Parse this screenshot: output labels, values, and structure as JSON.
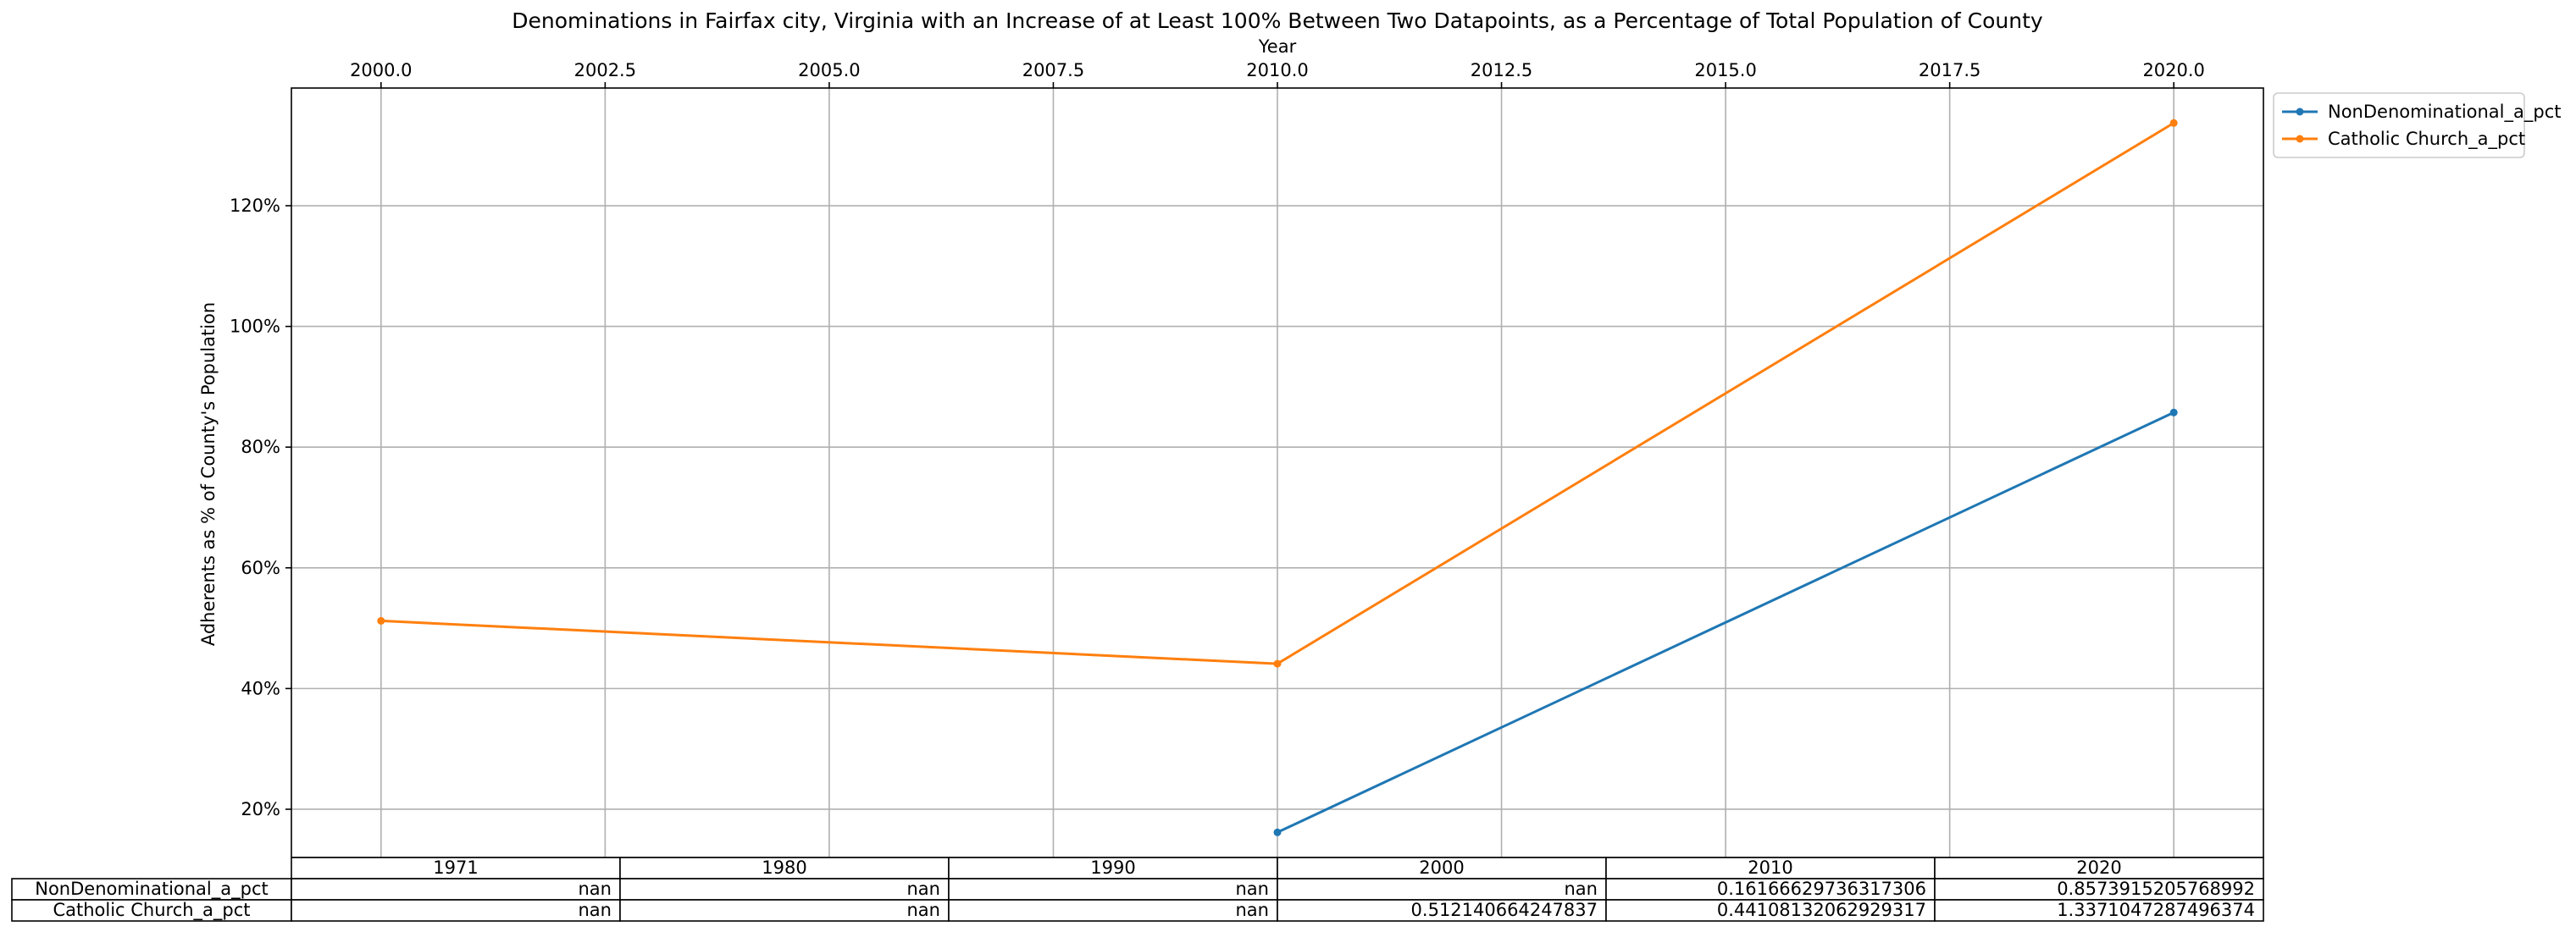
{
  "chart_data": {
    "type": "line",
    "title": "Denominations in Fairfax city, Virginia with an Increase of at Least 100% Between Two Datapoints, as a Percentage of Total Population of County",
    "xlabel": "Year",
    "ylabel": "Adherents as % of County's Population",
    "xlim": [
      1999.0,
      2021.0
    ],
    "ylim": [
      0.12,
      1.395
    ],
    "x_ticks": [
      2000.0,
      2002.5,
      2005.0,
      2007.5,
      2010.0,
      2012.5,
      2015.0,
      2017.5,
      2020.0
    ],
    "x_tick_labels": [
      "2000.0",
      "2002.5",
      "2005.0",
      "2007.5",
      "2010.0",
      "2012.5",
      "2015.0",
      "2017.5",
      "2020.0"
    ],
    "y_ticks": [
      0.2,
      0.4,
      0.6,
      0.8,
      1.0,
      1.2
    ],
    "y_tick_labels": [
      "20%",
      "40%",
      "60%",
      "80%",
      "100%",
      "120%"
    ],
    "x_axis_position": "top",
    "grid": true,
    "legend_position": "outside top-right",
    "series": [
      {
        "name": "NonDenominational_a_pct",
        "color": "#1f77b4",
        "x": [
          2010,
          2020
        ],
        "values": [
          0.16166629736317306,
          0.8573915205768992
        ]
      },
      {
        "name": "Catholic Church_a_pct",
        "color": "#ff7f0e",
        "x": [
          2000,
          2010,
          2020
        ],
        "values": [
          0.512140664247837,
          0.44108132062929317,
          1.3371047287496374
        ]
      }
    ],
    "table": {
      "columns": [
        "1971",
        "1980",
        "1990",
        "2000",
        "2010",
        "2020"
      ],
      "rows": [
        {
          "label": "NonDenominational_a_pct",
          "cells": [
            "nan",
            "nan",
            "nan",
            "nan",
            "0.16166629736317306",
            "0.8573915205768992"
          ]
        },
        {
          "label": "Catholic Church_a_pct",
          "cells": [
            "nan",
            "nan",
            "nan",
            "0.512140664247837",
            "0.44108132062929317",
            "1.3371047287496374"
          ]
        }
      ]
    }
  }
}
